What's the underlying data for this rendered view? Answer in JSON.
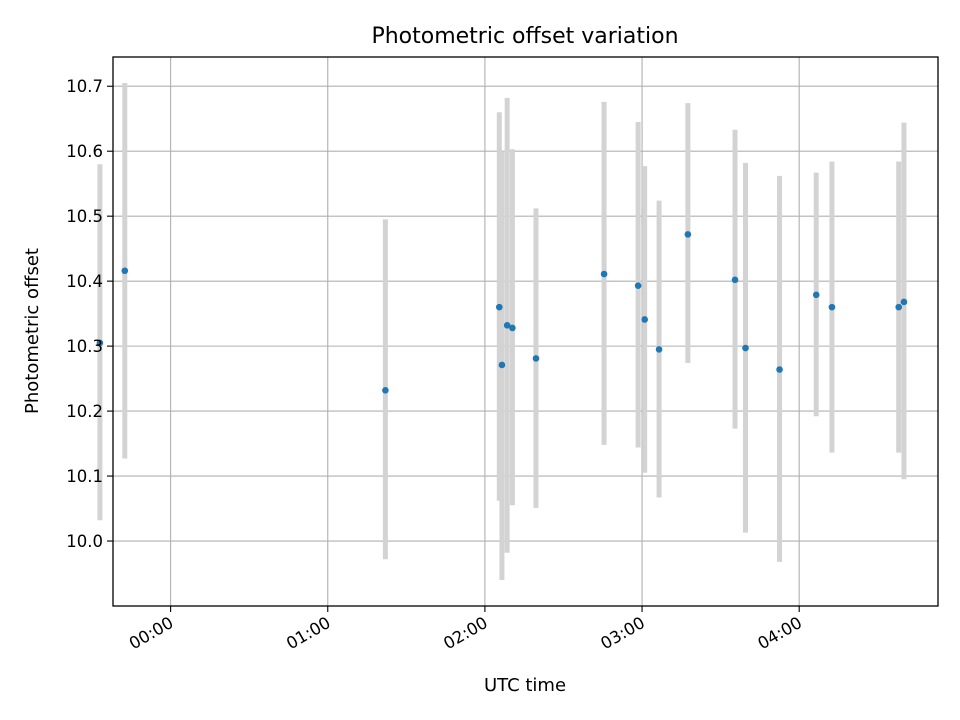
{
  "chart_data": {
    "type": "scatter",
    "title": "Photometric offset variation",
    "xlabel": "UTC time",
    "ylabel": "Photometric offset",
    "x_axis_kind": "time",
    "xlim": [
      "2023-01-01T23:38:00",
      "2023-01-02T04:53:00"
    ],
    "ylim": [
      9.9,
      10.745
    ],
    "x_ticks": [
      {
        "t": "2023-01-02T00:00:00",
        "label": "00:00"
      },
      {
        "t": "2023-01-02T01:00:00",
        "label": "01:00"
      },
      {
        "t": "2023-01-02T02:00:00",
        "label": "02:00"
      },
      {
        "t": "2023-01-02T03:00:00",
        "label": "03:00"
      },
      {
        "t": "2023-01-02T04:00:00",
        "label": "04:00"
      }
    ],
    "y_ticks": [
      {
        "v": 10.0,
        "label": "10.0"
      },
      {
        "v": 10.1,
        "label": "10.1"
      },
      {
        "v": 10.2,
        "label": "10.2"
      },
      {
        "v": 10.3,
        "label": "10.3"
      },
      {
        "v": 10.4,
        "label": "10.4"
      },
      {
        "v": 10.5,
        "label": "10.5"
      },
      {
        "v": 10.6,
        "label": "10.6"
      },
      {
        "v": 10.7,
        "label": "10.7"
      }
    ],
    "grid": true,
    "marker_color": "#1f77b4",
    "errorbar_color": "#d3d3d3",
    "points": [
      {
        "t": "2023-01-01T23:33:00",
        "y": 10.305,
        "lo": 10.032,
        "hi": 10.58
      },
      {
        "t": "2023-01-01T23:42:30",
        "y": 10.416,
        "lo": 10.127,
        "hi": 10.705
      },
      {
        "t": "2023-01-02T01:22:00",
        "y": 10.232,
        "lo": 9.972,
        "hi": 10.495
      },
      {
        "t": "2023-01-02T02:05:30",
        "y": 10.36,
        "lo": 10.062,
        "hi": 10.66
      },
      {
        "t": "2023-01-02T02:06:30",
        "y": 10.271,
        "lo": 9.94,
        "hi": 10.6
      },
      {
        "t": "2023-01-02T02:08:30",
        "y": 10.332,
        "lo": 9.982,
        "hi": 10.682
      },
      {
        "t": "2023-01-02T02:10:30",
        "y": 10.328,
        "lo": 10.055,
        "hi": 10.603
      },
      {
        "t": "2023-01-02T02:19:30",
        "y": 10.281,
        "lo": 10.051,
        "hi": 10.512
      },
      {
        "t": "2023-01-02T02:45:30",
        "y": 10.411,
        "lo": 10.148,
        "hi": 10.676
      },
      {
        "t": "2023-01-02T02:58:30",
        "y": 10.393,
        "lo": 10.144,
        "hi": 10.645
      },
      {
        "t": "2023-01-02T03:01:00",
        "y": 10.341,
        "lo": 10.105,
        "hi": 10.577
      },
      {
        "t": "2023-01-02T03:06:30",
        "y": 10.295,
        "lo": 10.067,
        "hi": 10.524
      },
      {
        "t": "2023-01-02T03:17:30",
        "y": 10.472,
        "lo": 10.274,
        "hi": 10.674
      },
      {
        "t": "2023-01-02T03:35:30",
        "y": 10.402,
        "lo": 10.173,
        "hi": 10.633
      },
      {
        "t": "2023-01-02T03:39:30",
        "y": 10.297,
        "lo": 10.013,
        "hi": 10.582
      },
      {
        "t": "2023-01-02T03:52:30",
        "y": 10.264,
        "lo": 9.968,
        "hi": 10.562
      },
      {
        "t": "2023-01-02T04:06:30",
        "y": 10.379,
        "lo": 10.192,
        "hi": 10.567
      },
      {
        "t": "2023-01-02T04:12:30",
        "y": 10.36,
        "lo": 10.136,
        "hi": 10.584
      },
      {
        "t": "2023-01-02T04:38:00",
        "y": 10.36,
        "lo": 10.136,
        "hi": 10.584
      },
      {
        "t": "2023-01-02T04:40:00",
        "y": 10.368,
        "lo": 10.095,
        "hi": 10.644
      }
    ]
  }
}
